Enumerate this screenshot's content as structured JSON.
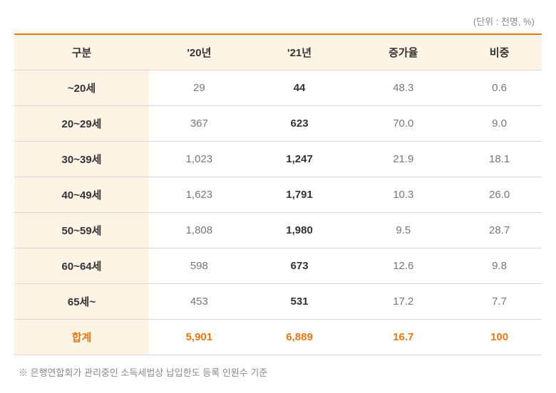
{
  "unit_label": "(단위 : 천명, %)",
  "table": {
    "columns": [
      "구분",
      "'20년",
      "'21년",
      "증가율",
      "비중"
    ],
    "rows": [
      {
        "label": "~20세",
        "y20": "29",
        "y21": "44",
        "growth": "48.3",
        "share": "0.6"
      },
      {
        "label": "20~29세",
        "y20": "367",
        "y21": "623",
        "growth": "70.0",
        "share": "9.0"
      },
      {
        "label": "30~39세",
        "y20": "1,023",
        "y21": "1,247",
        "growth": "21.9",
        "share": "18.1"
      },
      {
        "label": "40~49세",
        "y20": "1,623",
        "y21": "1,791",
        "growth": "10.3",
        "share": "26.0"
      },
      {
        "label": "50~59세",
        "y20": "1,808",
        "y21": "1,980",
        "growth": "9.5",
        "share": "28.7"
      },
      {
        "label": "60~64세",
        "y20": "598",
        "y21": "673",
        "growth": "12.6",
        "share": "9.8"
      },
      {
        "label": "65세~",
        "y20": "453",
        "y21": "531",
        "growth": "17.2",
        "share": "7.7"
      }
    ],
    "total": {
      "label": "합계",
      "y20": "5,901",
      "y21": "6,889",
      "growth": "16.7",
      "share": "100"
    }
  },
  "footnote": "※ 은행연합회가 관리중인 소득세법상 납입한도 등록 인원수 기준",
  "colors": {
    "accent": "#e67817",
    "header_bg": "#fef4e6",
    "text_dark": "#333333",
    "text_light": "#777777",
    "text_muted": "#888888",
    "border": "#d8d8d8"
  }
}
